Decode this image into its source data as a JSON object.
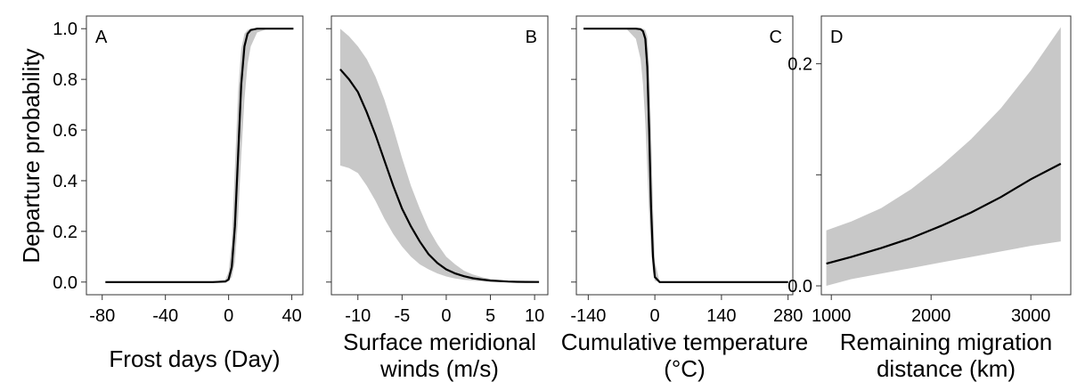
{
  "figure": {
    "ylabel": "Departure probability",
    "colors": {
      "band": "#c8c8c8",
      "line": "#000000",
      "frame": "#333333"
    }
  },
  "chart_data": [
    {
      "type": "line",
      "panel": "A",
      "xlabel": "Frost days (Day)",
      "ylabel": "Departure probability",
      "xlim": [
        -90,
        47
      ],
      "ylim": [
        -0.05,
        1.05
      ],
      "xticks": [
        -80,
        -40,
        0,
        40
      ],
      "xtick_labels": [
        "-80",
        "-40",
        "0",
        "40"
      ],
      "yticks": [
        0,
        0.2,
        0.4,
        0.6,
        0.8,
        1.0
      ],
      "ytick_labels": [
        "0.0",
        "0.2",
        "0.4",
        "0.6",
        "0.8",
        "1.0"
      ],
      "show_ytick_labels": true,
      "letter_position": "top-left",
      "grid": false,
      "x": [
        -78,
        -10,
        -2,
        0,
        2,
        4,
        6,
        8,
        10,
        12,
        14,
        18,
        25,
        41
      ],
      "y": [
        0.0,
        0.0,
        0.002,
        0.01,
        0.06,
        0.22,
        0.5,
        0.78,
        0.93,
        0.98,
        0.995,
        1.0,
        1.0,
        1.0
      ],
      "lower": [
        0.0,
        0.0,
        0.0,
        0.004,
        0.02,
        0.08,
        0.25,
        0.5,
        0.72,
        0.86,
        0.93,
        0.985,
        1.0,
        1.0
      ],
      "upper": [
        0.0,
        0.0,
        0.01,
        0.04,
        0.16,
        0.45,
        0.75,
        0.92,
        0.98,
        0.995,
        1.0,
        1.0,
        1.0,
        1.0
      ]
    },
    {
      "type": "line",
      "panel": "B",
      "xlabel": "Surface meridional winds (m/s)",
      "ylabel": "",
      "xlim": [
        -13,
        11.5
      ],
      "ylim": [
        -0.05,
        1.05
      ],
      "xticks": [
        -10,
        -5,
        0,
        5,
        10
      ],
      "xtick_labels": [
        "-10",
        "-5",
        "0",
        "5",
        "10"
      ],
      "yticks": [
        0,
        0.2,
        0.4,
        0.6,
        0.8,
        1.0
      ],
      "show_ytick_labels": false,
      "letter_position": "top-right",
      "grid": false,
      "x": [
        -12,
        -11,
        -10,
        -9,
        -8,
        -7,
        -6,
        -5,
        -4,
        -3,
        -2,
        -1,
        0,
        1,
        2,
        3,
        4,
        5,
        6,
        7,
        8,
        9,
        10.5
      ],
      "y": [
        0.84,
        0.8,
        0.75,
        0.67,
        0.58,
        0.48,
        0.38,
        0.29,
        0.22,
        0.16,
        0.11,
        0.075,
        0.05,
        0.034,
        0.023,
        0.015,
        0.01,
        0.006,
        0.004,
        0.002,
        0.001,
        0.0007,
        0.0003
      ],
      "lower": [
        0.46,
        0.45,
        0.43,
        0.38,
        0.32,
        0.25,
        0.19,
        0.14,
        0.1,
        0.07,
        0.05,
        0.034,
        0.022,
        0.014,
        0.009,
        0.006,
        0.003,
        0.002,
        0.001,
        0.0005,
        0.0002,
        0.0001,
        0.0
      ],
      "upper": [
        1.0,
        0.97,
        0.93,
        0.88,
        0.81,
        0.72,
        0.61,
        0.49,
        0.38,
        0.29,
        0.21,
        0.15,
        0.1,
        0.07,
        0.045,
        0.03,
        0.02,
        0.012,
        0.008,
        0.005,
        0.003,
        0.0015,
        0.0005
      ]
    },
    {
      "type": "line",
      "panel": "C",
      "xlabel": "Cumulative temperature (°C)",
      "ylabel": "",
      "xlim": [
        -165,
        290
      ],
      "ylim": [
        -0.05,
        1.05
      ],
      "xticks": [
        -140,
        0,
        140,
        280
      ],
      "xtick_labels": [
        "-140",
        "0",
        "140",
        "280"
      ],
      "yticks": [
        0,
        0.2,
        0.4,
        0.6,
        0.8,
        1.0
      ],
      "show_ytick_labels": false,
      "letter_position": "top-right",
      "grid": false,
      "x": [
        -150,
        -60,
        -40,
        -30,
        -25,
        -20,
        -16,
        -12,
        -8,
        -4,
        0,
        10,
        280
      ],
      "y": [
        1.0,
        1.0,
        1.0,
        0.998,
        0.99,
        0.96,
        0.85,
        0.6,
        0.3,
        0.1,
        0.02,
        0.0,
        0.0
      ],
      "lower": [
        1.0,
        1.0,
        0.96,
        0.88,
        0.78,
        0.63,
        0.45,
        0.28,
        0.13,
        0.04,
        0.005,
        0.0,
        0.0
      ],
      "upper": [
        1.0,
        1.0,
        1.0,
        1.0,
        1.0,
        0.995,
        0.97,
        0.85,
        0.6,
        0.3,
        0.08,
        0.0,
        0.0
      ]
    },
    {
      "type": "line",
      "panel": "D",
      "xlabel": "Remaining migration distance (km)",
      "ylabel": "",
      "xlim": [
        900,
        3400
      ],
      "ylim": [
        -0.008,
        0.243
      ],
      "xticks": [
        1000,
        2000,
        3000
      ],
      "xtick_labels": [
        "1000",
        "2000",
        "3000"
      ],
      "yticks": [
        0.0,
        0.1,
        0.2
      ],
      "ytick_labels": [
        "0.0",
        "",
        "0.2"
      ],
      "show_ytick_labels": true,
      "letter_position": "top-left",
      "grid": false,
      "x": [
        950,
        1200,
        1500,
        1800,
        2100,
        2400,
        2700,
        3000,
        3300
      ],
      "y": [
        0.02,
        0.026,
        0.034,
        0.043,
        0.054,
        0.066,
        0.08,
        0.096,
        0.11
      ],
      "lower": [
        0.0,
        0.006,
        0.011,
        0.016,
        0.021,
        0.026,
        0.031,
        0.036,
        0.04
      ],
      "upper": [
        0.05,
        0.058,
        0.07,
        0.087,
        0.108,
        0.132,
        0.16,
        0.194,
        0.233
      ]
    }
  ]
}
